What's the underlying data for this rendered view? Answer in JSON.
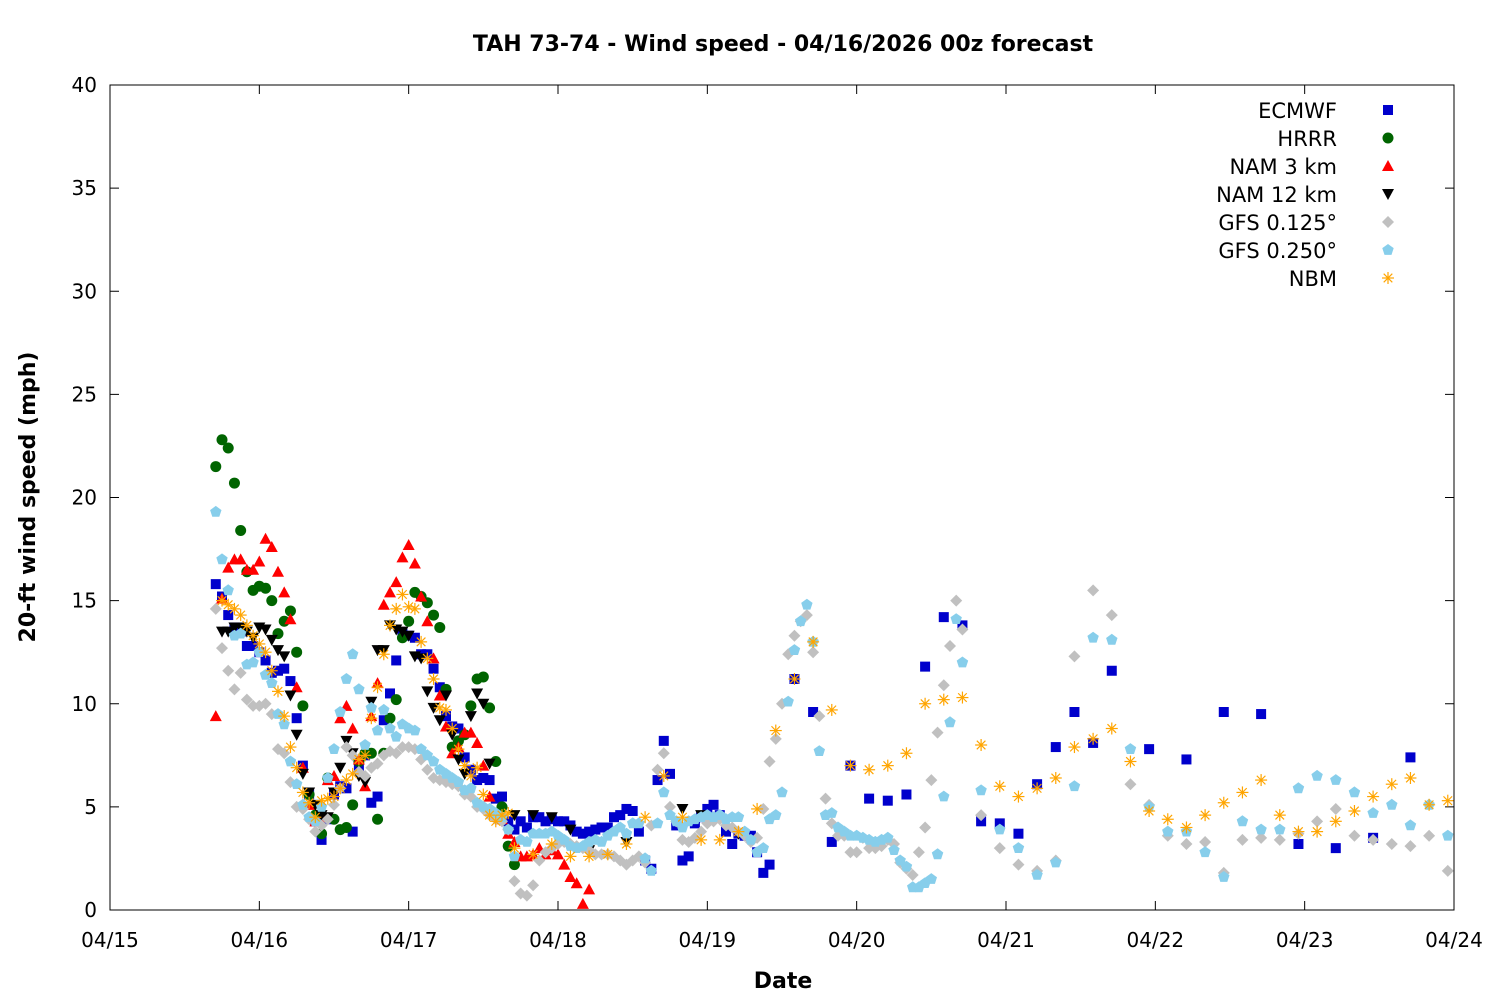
{
  "chart_data": {
    "type": "scatter",
    "title": "TAH 73-74 - Wind speed - 04/16/2026 00z forecast",
    "xlabel": "Date",
    "ylabel": "20-ft wind speed (mph)",
    "x_unit": "hours since 04/15 00z",
    "xlim": [
      0,
      216
    ],
    "ylim": [
      0,
      40
    ],
    "xticks": [
      {
        "value": 0,
        "label": "04/15"
      },
      {
        "value": 24,
        "label": "04/16"
      },
      {
        "value": 48,
        "label": "04/17"
      },
      {
        "value": 72,
        "label": "04/18"
      },
      {
        "value": 96,
        "label": "04/19"
      },
      {
        "value": 120,
        "label": "04/20"
      },
      {
        "value": 144,
        "label": "04/21"
      },
      {
        "value": 168,
        "label": "04/22"
      },
      {
        "value": 192,
        "label": "04/23"
      },
      {
        "value": 216,
        "label": "04/24"
      }
    ],
    "yticks": [
      {
        "value": 0,
        "label": "0"
      },
      {
        "value": 5,
        "label": "5"
      },
      {
        "value": 10,
        "label": "10"
      },
      {
        "value": 15,
        "label": "15"
      },
      {
        "value": 20,
        "label": "20"
      },
      {
        "value": 25,
        "label": "25"
      },
      {
        "value": 30,
        "label": "30"
      },
      {
        "value": 35,
        "label": "35"
      },
      {
        "value": 40,
        "label": "40"
      }
    ],
    "grid": false,
    "legend_position": "top-right",
    "series": [
      {
        "name": "ECMWF",
        "marker": "square",
        "color": "#0000cc",
        "segments": [
          {
            "start": 17,
            "step": 1,
            "y": [
              15.8,
              15.2,
              14.3,
              13.7,
              13.5,
              12.8,
              12.8,
              12.5,
              12.1,
              11.5,
              11.6,
              11.7,
              11.1,
              9.3,
              7.0,
              5.6,
              4.3,
              3.4,
              4.4,
              5.6,
              6.0,
              5.9,
              3.8,
              6.9,
              7.5,
              5.2,
              5.5,
              9.2,
              10.5,
              12.1,
              13.4,
              13.3,
              13.2,
              12.4,
              12.4,
              11.7,
              10.8,
              9.4,
              8.9,
              8.8,
              7.4,
              6.8,
              6.3,
              6.4,
              6.3,
              5.4,
              5.5,
              4.3,
              3.9,
              4.3,
              4.0,
              4.5,
              4.5,
              4.3,
              4.4,
              4.3,
              4.3,
              4.1,
              3.8,
              3.7,
              3.8,
              3.9,
              4.0,
              4.0,
              4.5,
              4.6,
              4.9,
              4.8,
              3.8,
              2.4,
              2.0,
              6.3,
              8.2,
              6.6,
              4.1,
              2.4,
              2.6,
              4.2,
              4.5,
              4.9,
              5.1,
              4.6,
              3.8,
              3.2,
              3.7,
              3.6,
              3.6,
              2.8,
              1.8,
              2.2
            ]
          },
          {
            "start": 110,
            "step": 3,
            "y": [
              11.2,
              9.6,
              3.3,
              7.0,
              5.4,
              5.3,
              5.6,
              11.8,
              14.2,
              13.8,
              4.3,
              4.2,
              3.7,
              6.1,
              7.9,
              9.6,
              8.1,
              11.6
            ]
          },
          {
            "start": 167,
            "step": 6,
            "y": [
              7.8,
              7.3,
              9.6,
              9.5,
              3.2,
              3.0,
              3.5,
              7.4
            ]
          }
        ]
      },
      {
        "name": "HRRR",
        "marker": "circle",
        "color": "#006400",
        "segments": [
          {
            "start": 17,
            "step": 1,
            "y": [
              21.5,
              22.8,
              22.4,
              20.7,
              18.4,
              16.4,
              15.5,
              15.7,
              15.6,
              15.0,
              13.4,
              14.0,
              14.5,
              12.5,
              9.9,
              5.6,
              4.6,
              3.7,
              6.4,
              4.4,
              3.9,
              4.0,
              5.1,
              7.2,
              7.6,
              7.6,
              4.4,
              7.6,
              9.3,
              10.2,
              13.2,
              14.0,
              15.4,
              15.2,
              14.9,
              14.3,
              13.7,
              10.7,
              7.9,
              8.2,
              8.5,
              9.9,
              11.2,
              11.3,
              9.8,
              7.2,
              5.0,
              3.1,
              2.2
            ]
          }
        ]
      },
      {
        "name": "NAM 3 km",
        "marker": "triangle-up",
        "color": "#ff0000",
        "segments": [
          {
            "start": 17,
            "step": 1,
            "y": [
              9.4,
              15.1,
              16.6,
              17.0,
              17.0,
              16.5,
              16.5,
              16.9,
              18.0,
              17.6,
              16.4,
              15.4,
              14.1,
              10.8,
              6.9,
              5.1,
              4.3,
              4.5,
              6.3,
              6.5,
              9.3,
              9.9,
              8.8,
              7.3,
              6.0,
              9.4,
              11.0,
              14.8,
              15.4,
              15.9,
              17.1,
              17.7,
              16.8,
              15.2,
              14.0,
              12.2,
              10.4,
              8.9,
              7.6,
              7.9,
              8.6,
              8.6,
              8.1,
              7.0,
              5.5,
              4.6,
              4.4,
              3.7,
              3.3,
              2.6,
              2.6,
              2.7,
              3.0,
              2.7,
              2.9,
              2.7,
              2.2,
              1.6,
              1.3,
              0.3,
              1.0
            ]
          }
        ]
      },
      {
        "name": "NAM 12 km",
        "marker": "triangle-down",
        "color": "#000000",
        "segments": [
          {
            "start": 18,
            "step": 1,
            "y": [
              13.5,
              13.5,
              13.7,
              13.7,
              13.5,
              13.2,
              13.7,
              13.6,
              13.1,
              12.6,
              12.3,
              10.4,
              8.5,
              6.6,
              5.7,
              5.1,
              4.6,
              4.5,
              5.7,
              6.9,
              8.2,
              7.6,
              6.5,
              6.2,
              10.1,
              12.6,
              12.6,
              13.8,
              13.6,
              13.5,
              13.3,
              12.3,
              12.2,
              10.6,
              9.8,
              9.2,
              10.4,
              8.5,
              7.3,
              6.6,
              9.4,
              10.5,
              10.0,
              7.1
            ]
          },
          {
            "start": 65,
            "step": 3,
            "y": [
              4.6,
              4.6,
              4.5,
              3.9,
              2.9,
              null,
              3.3,
              null,
              null,
              4.9,
              4.6,
              4.4,
              3.7
            ]
          }
        ]
      },
      {
        "name": "GFS 0.125°",
        "marker": "diamond",
        "color": "#c0c0c0",
        "segments": [
          {
            "start": 17,
            "step": 1,
            "y": [
              14.6,
              12.7,
              11.6,
              10.7,
              11.5,
              10.2,
              9.9,
              9.9,
              10.0,
              9.5,
              7.8,
              7.6,
              6.2,
              5.0,
              4.9,
              4.4,
              3.8,
              4.1,
              4.4,
              5.1,
              5.9,
              7.9,
              7.5,
              6.7,
              6.5,
              6.9,
              7.1,
              7.5,
              7.7,
              7.6,
              7.9,
              7.9,
              7.8,
              7.3,
              6.8,
              6.4,
              6.3,
              6.2,
              6.1,
              6.0,
              5.6,
              5.5,
              5.0,
              4.9,
              4.6,
              4.4,
              4.3,
              3.9,
              1.4,
              0.8,
              0.7,
              1.2,
              2.4,
              2.8,
              3.0,
              3.2,
              3.3,
              3.2,
              3.1,
              3.0,
              2.9,
              2.7,
              2.7,
              2.7,
              2.6,
              2.4,
              2.2,
              2.4,
              2.6,
              2.3,
              4.1,
              6.8,
              7.6,
              5.0,
              4.3,
              3.4,
              3.3,
              3.5,
              3.8,
              4.2,
              4.3,
              4.4,
              4.1,
              4.0,
              3.8,
              3.6,
              3.3,
              3.5,
              4.9,
              7.2,
              8.3,
              10.0,
              12.4,
              13.3,
              14.0,
              14.3,
              12.5,
              9.4,
              5.4,
              4.2,
              3.6,
              3.6,
              2.8,
              2.8,
              3.5,
              3.0,
              3.0,
              3.1,
              3.4,
              3.2,
              2.3,
              2.0,
              1.7,
              2.8,
              4.0,
              6.3,
              8.6,
              10.9,
              12.8,
              15.0,
              13.6
            ]
          },
          {
            "start": 140,
            "step": 3,
            "y": [
              4.6,
              3.0,
              2.2,
              1.9,
              2.4,
              12.3,
              15.5,
              14.3,
              6.1,
              5.1,
              3.6,
              3.2,
              3.3,
              1.8,
              3.4,
              3.5,
              3.4,
              3.7,
              4.3,
              4.9,
              3.6,
              3.4,
              3.2,
              3.1,
              3.6,
              1.9
            ]
          }
        ]
      },
      {
        "name": "GFS 0.250°",
        "marker": "pentagon",
        "color": "#87ceeb",
        "segments": [
          {
            "start": 17,
            "step": 1,
            "y": [
              19.3,
              17.0,
              15.5,
              13.3,
              13.4,
              11.9,
              12.0,
              12.5,
              11.4,
              11.0,
              9.5,
              9.0,
              7.2,
              6.1,
              5.1,
              4.5,
              4.3,
              5.0,
              6.4,
              7.8,
              9.6,
              11.2,
              12.4,
              10.7,
              8.0,
              9.8,
              8.7,
              9.7,
              8.8,
              8.4,
              9.0,
              8.8,
              8.7,
              7.8,
              7.5,
              7.2,
              6.8,
              6.6,
              6.4,
              6.2,
              5.8,
              5.9,
              5.2,
              5.0,
              4.9,
              4.7,
              4.5,
              3.9,
              2.6,
              3.4,
              3.3,
              3.7,
              3.7,
              3.7,
              3.8,
              3.6,
              3.4,
              3.1,
              3.0,
              3.1,
              3.3,
              3.4,
              3.3,
              3.6,
              3.8,
              4.0,
              3.7,
              4.2,
              4.2,
              2.5,
              1.9,
              4.2,
              5.7,
              4.6,
              4.3,
              4.0,
              4.3,
              4.4,
              4.5,
              4.6,
              4.5,
              4.6,
              4.4,
              4.5,
              4.5,
              3.8,
              3.4,
              2.8,
              3.0,
              4.4,
              4.6,
              5.7,
              10.1,
              12.6,
              14.0,
              14.8,
              13.0,
              7.7,
              4.6,
              4.7,
              4.0,
              3.8,
              3.6,
              3.6,
              3.5,
              3.4,
              3.3,
              3.4,
              3.5,
              2.9,
              2.4,
              2.1,
              1.1,
              1.1,
              1.3,
              1.5,
              2.7,
              5.5,
              9.1,
              14.1,
              12.0
            ]
          },
          {
            "start": 140,
            "step": 3,
            "y": [
              5.8,
              3.9,
              3.0,
              1.7,
              2.3,
              6.0,
              13.2,
              13.1,
              7.8,
              5.0,
              3.8,
              3.8,
              2.8,
              1.6,
              4.3,
              3.9,
              3.9,
              5.9,
              6.5,
              6.3,
              5.7,
              4.7,
              5.1,
              4.1,
              5.1,
              3.6
            ]
          }
        ]
      },
      {
        "name": "NBM",
        "marker": "asterisk",
        "color": "#ffa500",
        "segments": [
          {
            "start": 18,
            "step": 1,
            "y": [
              15.0,
              14.8,
              14.6,
              14.3,
              13.8,
              13.3,
              12.9,
              12.5,
              11.6,
              10.6,
              9.4,
              7.9,
              6.9,
              5.7,
              5.2,
              4.5,
              5.3,
              5.4,
              5.5,
              5.9,
              6.3,
              6.6,
              7.3,
              7.5,
              9.3,
              10.8,
              12.4,
              13.8,
              14.6,
              15.3,
              14.7,
              14.6,
              13.0,
              12.2,
              11.2,
              9.8,
              9.7,
              8.8,
              7.8,
              7.0,
              6.5,
              6.9,
              5.6,
              4.6,
              4.3,
              4.6,
              4.7,
              3.0
            ]
          },
          {
            "start": 68,
            "step": 3,
            "y": [
              2.7,
              3.2,
              2.6,
              2.6,
              2.7,
              3.2,
              4.5,
              6.5,
              4.5,
              3.4,
              3.4,
              3.8,
              4.9,
              8.7,
              11.2,
              13.0,
              9.7,
              7.0,
              6.8,
              7.0,
              7.6,
              10.0,
              10.2,
              10.3,
              8.0,
              6.0,
              5.5,
              5.9,
              6.4,
              7.9,
              8.3,
              8.8,
              7.2,
              4.8,
              4.4,
              4.0,
              4.6,
              5.2,
              5.7,
              6.3,
              4.6,
              3.8,
              3.8,
              4.3,
              4.8,
              5.5,
              6.1,
              6.4,
              5.1,
              5.3
            ]
          }
        ]
      }
    ]
  }
}
